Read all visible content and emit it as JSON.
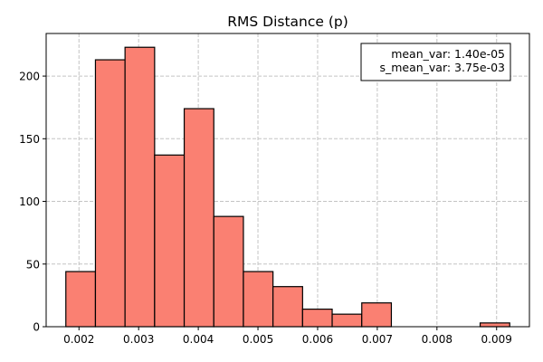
{
  "chart_data": {
    "type": "bar",
    "title": "RMS Distance (p)",
    "xlabel": "",
    "ylabel": "",
    "xlim": [
      0.00145,
      0.00955
    ],
    "ylim": [
      0,
      234
    ],
    "x_ticks": [
      0.002,
      0.003,
      0.004,
      0.005,
      0.006,
      0.007,
      0.008,
      0.009
    ],
    "x_tick_labels": [
      "0.002",
      "0.003",
      "0.004",
      "0.005",
      "0.006",
      "0.007",
      "0.008",
      "0.009"
    ],
    "y_ticks": [
      0,
      50,
      100,
      150,
      200
    ],
    "y_tick_labels": [
      "0",
      "50",
      "100",
      "150",
      "200"
    ],
    "bin_width": 0.000496,
    "bins": [
      {
        "start": 0.00178,
        "count": 44
      },
      {
        "start": 0.002276,
        "count": 213
      },
      {
        "start": 0.002772,
        "count": 223
      },
      {
        "start": 0.003268,
        "count": 137
      },
      {
        "start": 0.003764,
        "count": 174
      },
      {
        "start": 0.00426,
        "count": 88
      },
      {
        "start": 0.004756,
        "count": 44
      },
      {
        "start": 0.005252,
        "count": 32
      },
      {
        "start": 0.005748,
        "count": 14
      },
      {
        "start": 0.006244,
        "count": 10
      },
      {
        "start": 0.00674,
        "count": 19
      },
      {
        "start": 0.007236,
        "count": 0
      },
      {
        "start": 0.007732,
        "count": 0
      },
      {
        "start": 0.008228,
        "count": 0
      },
      {
        "start": 0.008724,
        "count": 3
      }
    ],
    "bar_color": "#fa8072",
    "edge_color": "#000000",
    "grid": true,
    "grid_style": "dashed",
    "annotation": {
      "lines": [
        "mean_var: 1.40e-05",
        "s_mean_var: 3.75e-03"
      ],
      "placement": "top-right"
    }
  }
}
